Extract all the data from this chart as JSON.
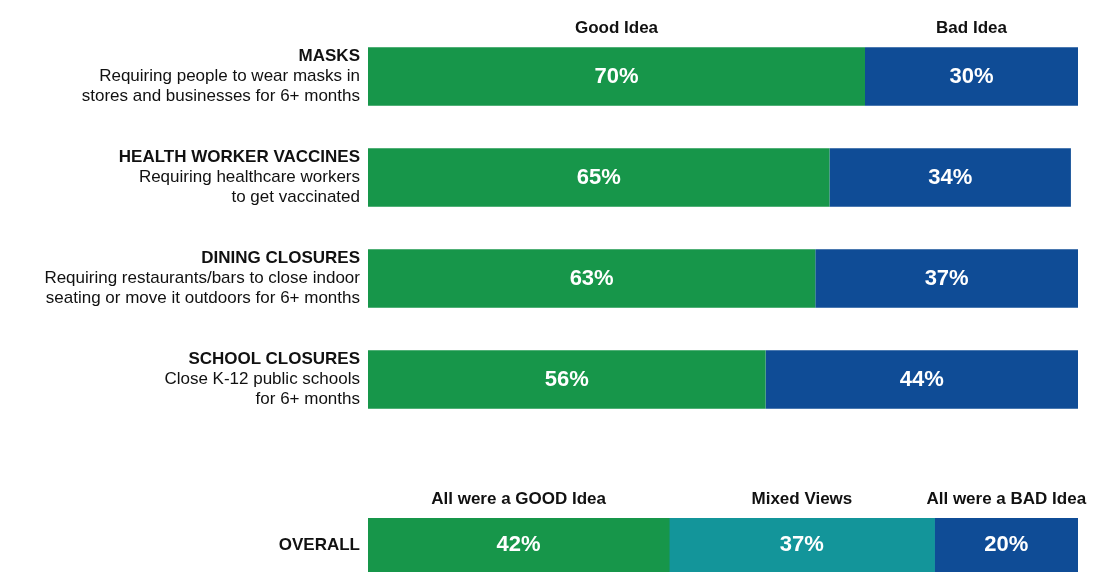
{
  "chart_data": [
    {
      "type": "bar",
      "orientation": "horizontal",
      "stacked": true,
      "legend": "top",
      "tick_labels": "y",
      "categories": [
        "MASKS\nRequiring people to wear masks in\nstores and businesses for 6+ months",
        "HEALTH WORKER VACCINES\nRequiring healthcare workers\nto get vaccinated",
        "DINING CLOSURES\nRequiring restaurants/bars to close indoor\nseating or move it outdoors for 6+ months",
        "SCHOOL CLOSURES\nClose K-12 public schools\nfor 6+ months"
      ],
      "series": [
        {
          "name": "Good Idea",
          "color": "#17964a",
          "values": [
            70,
            65,
            63,
            56
          ],
          "value_labels": [
            "70%",
            "65%",
            "63%",
            "56%"
          ]
        },
        {
          "name": "Bad Idea",
          "color": "#0f4c96",
          "values": [
            30,
            34,
            37,
            44
          ],
          "value_labels": [
            "30%",
            "34%",
            "37%",
            "44%"
          ]
        }
      ]
    },
    {
      "type": "bar",
      "orientation": "horizontal",
      "stacked": true,
      "legend": "top",
      "tick_labels": "y",
      "categories": [
        "OVERALL"
      ],
      "series": [
        {
          "name": "All were a GOOD Idea",
          "color": "#17964a",
          "values": [
            42
          ],
          "value_labels": [
            "42%"
          ]
        },
        {
          "name": "Mixed Views",
          "color": "#13959a",
          "values": [
            37
          ],
          "value_labels": [
            "37%"
          ]
        },
        {
          "name": "All were a BAD Idea",
          "color": "#0f4c96",
          "values": [
            20
          ],
          "value_labels": [
            "20%"
          ]
        }
      ]
    }
  ]
}
